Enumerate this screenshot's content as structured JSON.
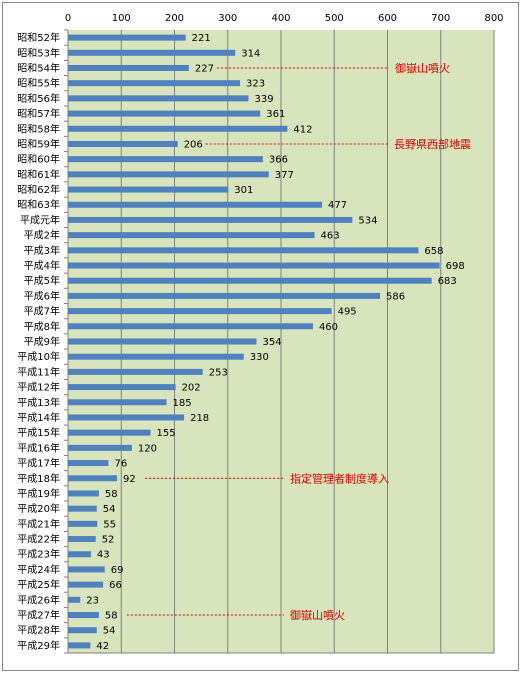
{
  "chart_data": {
    "type": "bar",
    "orientation": "horizontal",
    "title": "",
    "xlabel": "",
    "ylabel": "",
    "xlim": [
      0,
      800
    ],
    "x_ticks": [
      "0",
      "100",
      "200",
      "300",
      "400",
      "500",
      "600",
      "700",
      "800"
    ],
    "grid": true,
    "legend": "none",
    "colors": {
      "bar": "#4f81bd",
      "plot_bg": "#d8e4bc",
      "grid": "#808080",
      "annotation": "#e00000"
    },
    "categories": [
      "昭和52年",
      "昭和53年",
      "昭和54年",
      "昭和55年",
      "昭和56年",
      "昭和57年",
      "昭和58年",
      "昭和59年",
      "昭和60年",
      "昭和61年",
      "昭和62年",
      "昭和63年",
      "平成元年",
      "平成2年",
      "平成3年",
      "平成4年",
      "平成5年",
      "平成6年",
      "平成7年",
      "平成8年",
      "平成9年",
      "平成10年",
      "平成11年",
      "平成12年",
      "平成13年",
      "平成14年",
      "平成15年",
      "平成16年",
      "平成17年",
      "平成18年",
      "平成19年",
      "平成20年",
      "平成21年",
      "平成22年",
      "平成23年",
      "平成24年",
      "平成25年",
      "平成26年",
      "平成27年",
      "平成28年",
      "平成29年"
    ],
    "values": [
      221,
      314,
      227,
      323,
      339,
      361,
      412,
      206,
      366,
      377,
      301,
      477,
      534,
      463,
      658,
      698,
      683,
      586,
      495,
      460,
      354,
      330,
      253,
      202,
      185,
      218,
      155,
      120,
      76,
      92,
      58,
      54,
      55,
      52,
      43,
      69,
      66,
      23,
      58,
      54,
      42
    ],
    "value_labels": [
      "221",
      "314",
      "227",
      "323",
      "339",
      "361",
      "412",
      "206",
      "366",
      "377",
      "301",
      "477",
      "534",
      "463",
      "658",
      "698",
      "683",
      "586",
      "495",
      "460",
      "354",
      "330",
      "253",
      "202",
      "185",
      "218",
      "155",
      "120",
      "76",
      "92",
      "58",
      "54",
      "55",
      "52",
      "43",
      "69",
      "66",
      "23",
      "58",
      "54",
      "42"
    ],
    "annotations": [
      {
        "category": "昭和54年",
        "text": "御嶽山噴火"
      },
      {
        "category": "昭和59年",
        "text": "長野県西部地震"
      },
      {
        "category": "平成18年",
        "text": "指定管理者制度導入"
      },
      {
        "category": "平成27年",
        "text": "御嶽山噴火"
      }
    ]
  }
}
